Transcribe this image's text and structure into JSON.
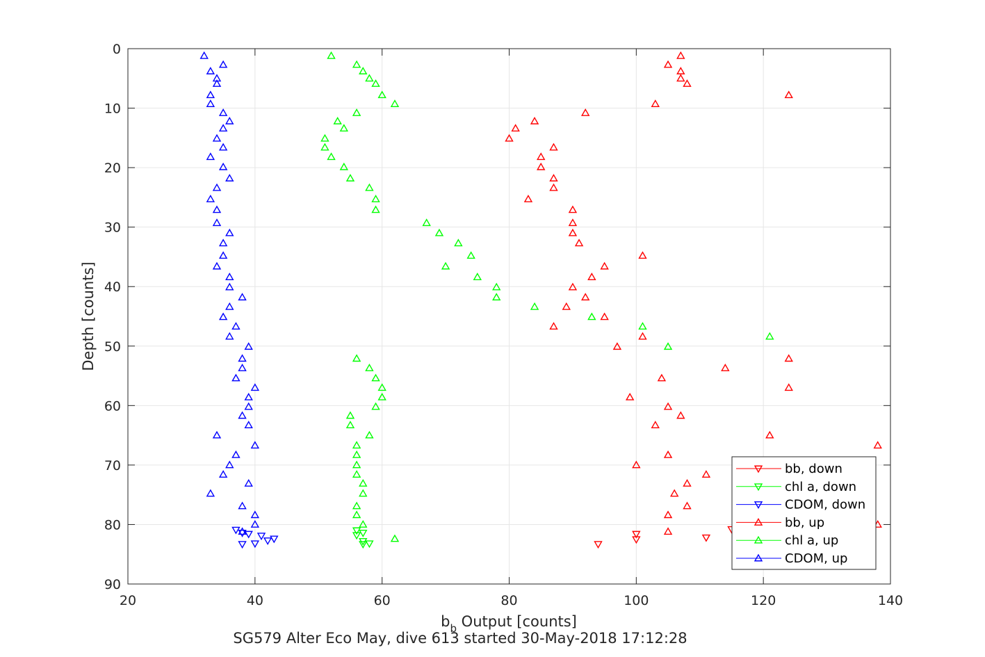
{
  "chart_data": {
    "type": "scatter",
    "xlabel_main": "b",
    "xlabel_sub": "b",
    "xlabel_rest": " Output [counts]",
    "ylabel": "Depth [counts]",
    "caption": "SG579 Alter Eco May, dive 613 started 30-May-2018 17:12:28",
    "xlim": [
      20,
      140
    ],
    "ylim": [
      0,
      90
    ],
    "y_reversed": true,
    "grid": true,
    "legend_position": "bottom-right",
    "x_ticks": [
      "20",
      "40",
      "60",
      "80",
      "100",
      "120",
      "140"
    ],
    "y_ticks": [
      "0",
      "10",
      "20",
      "30",
      "40",
      "50",
      "60",
      "70",
      "80",
      "90"
    ],
    "series": [
      {
        "name": "bb, down",
        "color": "#ff0000",
        "marker": "triangle-down",
        "points": [
          [
            94,
            83.3
          ],
          [
            100,
            81.6
          ],
          [
            100,
            82.5
          ],
          [
            111,
            82.2
          ],
          [
            115,
            80.8
          ]
        ]
      },
      {
        "name": "chl a, down",
        "color": "#00ff00",
        "marker": "triangle-down",
        "points": [
          [
            56,
            81.0
          ],
          [
            56,
            81.8
          ],
          [
            57,
            81.4
          ],
          [
            57,
            82.8
          ],
          [
            57,
            83.3
          ],
          [
            58,
            83.2
          ]
        ]
      },
      {
        "name": "CDOM, down",
        "color": "#0000ff",
        "marker": "triangle-down",
        "points": [
          [
            37,
            80.9
          ],
          [
            38,
            81.4
          ],
          [
            38,
            83.3
          ],
          [
            39,
            81.6
          ],
          [
            40,
            83.2
          ],
          [
            41,
            81.9
          ],
          [
            42,
            82.7
          ],
          [
            43,
            82.4
          ]
        ]
      },
      {
        "name": "bb, up",
        "color": "#ff0000",
        "marker": "triangle-up",
        "points": [
          [
            107,
            1.2
          ],
          [
            105,
            2.7
          ],
          [
            107,
            3.8
          ],
          [
            107,
            5.0
          ],
          [
            108,
            5.9
          ],
          [
            124,
            7.8
          ],
          [
            103,
            9.3
          ],
          [
            92,
            10.8
          ],
          [
            84,
            12.2
          ],
          [
            81,
            13.4
          ],
          [
            80,
            15.1
          ],
          [
            87,
            16.6
          ],
          [
            85,
            18.2
          ],
          [
            85,
            19.9
          ],
          [
            87,
            21.8
          ],
          [
            87,
            23.4
          ],
          [
            83,
            25.3
          ],
          [
            90,
            27.1
          ],
          [
            90,
            29.3
          ],
          [
            90,
            31.0
          ],
          [
            91,
            32.7
          ],
          [
            101,
            34.8
          ],
          [
            95,
            36.6
          ],
          [
            93,
            38.4
          ],
          [
            90,
            40.1
          ],
          [
            92,
            41.8
          ],
          [
            89,
            43.4
          ],
          [
            95,
            45.1
          ],
          [
            87,
            46.7
          ],
          [
            101,
            48.4
          ],
          [
            97,
            50.1
          ],
          [
            124,
            52.1
          ],
          [
            114,
            53.7
          ],
          [
            104,
            55.4
          ],
          [
            124,
            57.0
          ],
          [
            99,
            58.6
          ],
          [
            105,
            60.2
          ],
          [
            107,
            61.7
          ],
          [
            103,
            63.3
          ],
          [
            121,
            65.0
          ],
          [
            138,
            66.7
          ],
          [
            105,
            68.3
          ],
          [
            100,
            70.0
          ],
          [
            111,
            71.6
          ],
          [
            108,
            73.1
          ],
          [
            106,
            74.8
          ],
          [
            108,
            76.9
          ],
          [
            105,
            78.4
          ],
          [
            138,
            80.0
          ],
          [
            105,
            81.2
          ]
        ]
      },
      {
        "name": "chl a, up",
        "color": "#00ff00",
        "marker": "triangle-up",
        "points": [
          [
            52,
            1.2
          ],
          [
            56,
            2.7
          ],
          [
            57,
            3.8
          ],
          [
            58,
            5.0
          ],
          [
            59,
            5.9
          ],
          [
            60,
            7.8
          ],
          [
            62,
            9.3
          ],
          [
            56,
            10.8
          ],
          [
            53,
            12.2
          ],
          [
            54,
            13.4
          ],
          [
            51,
            15.1
          ],
          [
            51,
            16.6
          ],
          [
            52,
            18.2
          ],
          [
            54,
            19.9
          ],
          [
            55,
            21.8
          ],
          [
            58,
            23.4
          ],
          [
            59,
            25.3
          ],
          [
            59,
            27.1
          ],
          [
            67,
            29.3
          ],
          [
            69,
            31.0
          ],
          [
            72,
            32.7
          ],
          [
            74,
            34.8
          ],
          [
            70,
            36.6
          ],
          [
            75,
            38.4
          ],
          [
            78,
            40.1
          ],
          [
            78,
            41.8
          ],
          [
            84,
            43.4
          ],
          [
            93,
            45.1
          ],
          [
            101,
            46.7
          ],
          [
            121,
            48.4
          ],
          [
            105,
            50.1
          ],
          [
            56,
            52.1
          ],
          [
            58,
            53.7
          ],
          [
            59,
            55.4
          ],
          [
            60,
            57.0
          ],
          [
            60,
            58.6
          ],
          [
            59,
            60.2
          ],
          [
            55,
            61.7
          ],
          [
            55,
            63.3
          ],
          [
            58,
            65.0
          ],
          [
            56,
            66.7
          ],
          [
            56,
            68.3
          ],
          [
            56,
            70.0
          ],
          [
            56,
            71.6
          ],
          [
            57,
            73.1
          ],
          [
            57,
            74.8
          ],
          [
            56,
            76.9
          ],
          [
            56,
            78.4
          ],
          [
            57,
            80.0
          ],
          [
            62,
            82.4
          ]
        ]
      },
      {
        "name": "CDOM, up",
        "color": "#0000ff",
        "marker": "triangle-up",
        "points": [
          [
            32,
            1.2
          ],
          [
            35,
            2.7
          ],
          [
            33,
            3.8
          ],
          [
            34,
            5.0
          ],
          [
            34,
            5.9
          ],
          [
            33,
            7.8
          ],
          [
            33,
            9.3
          ],
          [
            35,
            10.8
          ],
          [
            36,
            12.2
          ],
          [
            35,
            13.4
          ],
          [
            34,
            15.1
          ],
          [
            35,
            16.6
          ],
          [
            33,
            18.2
          ],
          [
            35,
            19.9
          ],
          [
            36,
            21.8
          ],
          [
            34,
            23.4
          ],
          [
            33,
            25.3
          ],
          [
            34,
            27.1
          ],
          [
            34,
            29.3
          ],
          [
            36,
            31.0
          ],
          [
            35,
            32.7
          ],
          [
            35,
            34.8
          ],
          [
            34,
            36.6
          ],
          [
            36,
            38.4
          ],
          [
            36,
            40.1
          ],
          [
            38,
            41.8
          ],
          [
            36,
            43.4
          ],
          [
            35,
            45.1
          ],
          [
            37,
            46.7
          ],
          [
            36,
            48.4
          ],
          [
            39,
            50.1
          ],
          [
            38,
            52.1
          ],
          [
            38,
            53.7
          ],
          [
            37,
            55.4
          ],
          [
            40,
            57.0
          ],
          [
            39,
            58.6
          ],
          [
            39,
            60.2
          ],
          [
            38,
            61.7
          ],
          [
            39,
            63.3
          ],
          [
            34,
            65.0
          ],
          [
            40,
            66.7
          ],
          [
            37,
            68.3
          ],
          [
            36,
            70.0
          ],
          [
            35,
            71.6
          ],
          [
            39,
            73.1
          ],
          [
            33,
            74.8
          ],
          [
            38,
            76.9
          ],
          [
            40,
            78.4
          ],
          [
            40,
            80.0
          ],
          [
            38,
            81.2
          ]
        ]
      }
    ]
  }
}
